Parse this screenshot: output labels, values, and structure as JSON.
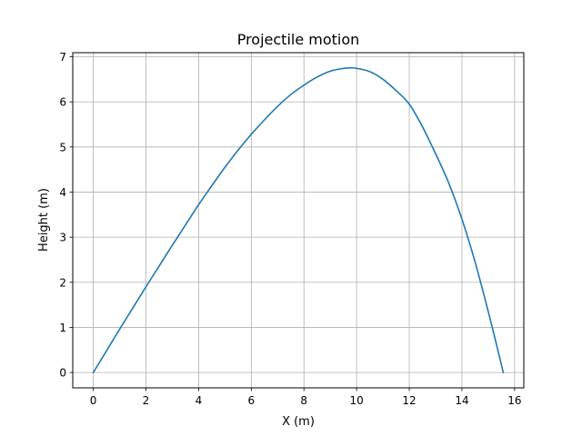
{
  "chart_data": {
    "type": "line",
    "title": "Projectile motion",
    "xlabel": "X (m)",
    "ylabel": "Height (m)",
    "xlim": [
      -0.78,
      16.35
    ],
    "ylim": [
      -0.34,
      7.09
    ],
    "xticks": [
      0,
      2,
      4,
      6,
      8,
      10,
      12,
      14,
      16
    ],
    "yticks": [
      0,
      1,
      2,
      3,
      4,
      5,
      6,
      7
    ],
    "grid": true,
    "series": [
      {
        "color": "#1f77b4",
        "x": [
          0,
          0.5,
          1.0,
          1.5,
          2.0,
          2.5,
          3.0,
          3.5,
          4.0,
          4.5,
          5.0,
          5.5,
          6.0,
          6.5,
          7.0,
          7.5,
          8.0,
          8.5,
          9.0,
          9.5,
          9.9,
          10.5,
          11.0,
          11.5,
          12.0,
          12.5,
          13.0,
          13.5,
          14.0,
          14.5,
          15.0,
          15.3,
          15.57
        ],
        "y": [
          0,
          0.48,
          0.96,
          1.43,
          1.9,
          2.36,
          2.82,
          3.27,
          3.72,
          4.14,
          4.55,
          4.93,
          5.28,
          5.6,
          5.9,
          6.16,
          6.37,
          6.55,
          6.68,
          6.74,
          6.75,
          6.67,
          6.5,
          6.25,
          5.95,
          5.45,
          4.85,
          4.2,
          3.4,
          2.45,
          1.35,
          0.65,
          0
        ]
      }
    ]
  }
}
